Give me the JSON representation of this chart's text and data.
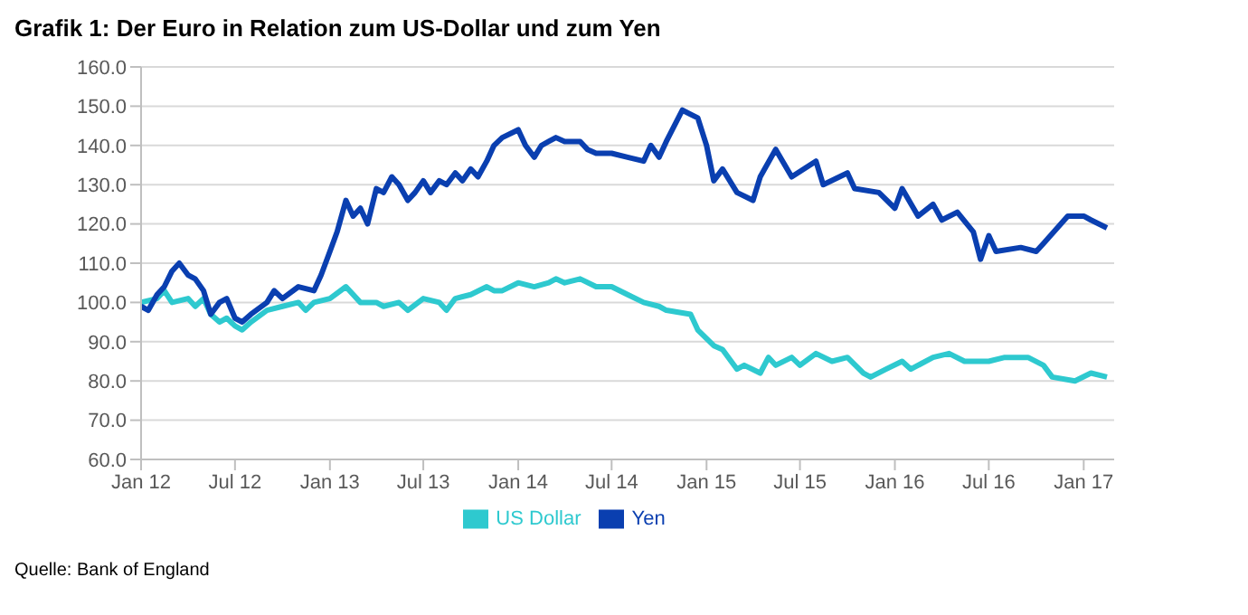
{
  "chart_data": {
    "type": "line",
    "title": "Grafik 1: Der Euro in Relation zum US-Dollar und zum Yen",
    "annotations": [
      "Quelle: Bank of England"
    ],
    "series": [
      {
        "name": "US Dollar",
        "color": "#2ec9cf",
        "x": [
          "2012-01-01",
          "2012-02-01",
          "2012-02-15",
          "2012-03-01",
          "2012-04-01",
          "2012-04-15",
          "2012-05-01",
          "2012-05-15",
          "2012-06-01",
          "2012-06-15",
          "2012-07-01",
          "2012-07-15",
          "2012-08-01",
          "2012-09-01",
          "2012-10-01",
          "2012-11-01",
          "2012-11-15",
          "2012-12-01",
          "2013-01-01",
          "2013-02-01",
          "2013-03-01",
          "2013-04-01",
          "2013-04-15",
          "2013-05-15",
          "2013-06-01",
          "2013-07-01",
          "2013-08-01",
          "2013-08-15",
          "2013-09-01",
          "2013-10-01",
          "2013-11-01",
          "2013-11-15",
          "2013-12-01",
          "2014-01-01",
          "2014-02-01",
          "2014-03-01",
          "2014-03-15",
          "2014-04-01",
          "2014-05-01",
          "2014-06-01",
          "2014-07-01",
          "2014-08-01",
          "2014-09-01",
          "2014-10-01",
          "2014-10-15",
          "2014-12-01",
          "2014-12-15",
          "2015-01-15",
          "2015-02-01",
          "2015-03-01",
          "2015-03-15",
          "2015-04-15",
          "2015-05-01",
          "2015-05-15",
          "2015-06-15",
          "2015-07-01",
          "2015-08-01",
          "2015-09-01",
          "2015-10-01",
          "2015-11-01",
          "2015-11-15",
          "2015-12-15",
          "2016-01-15",
          "2016-02-01",
          "2016-03-15",
          "2016-04-15",
          "2016-05-15",
          "2016-07-01",
          "2016-08-01",
          "2016-09-15",
          "2016-10-15",
          "2016-11-01",
          "2016-12-15",
          "2017-01-15",
          "2017-02-15"
        ],
        "values": [
          100,
          101,
          103,
          100,
          101,
          99,
          101,
          97,
          95,
          96,
          94,
          93,
          95,
          98,
          99,
          100,
          98,
          100,
          101,
          104,
          100,
          100,
          99,
          100,
          98,
          101,
          100,
          98,
          101,
          102,
          104,
          103,
          103,
          105,
          104,
          105,
          106,
          105,
          106,
          104,
          104,
          102,
          100,
          99,
          98,
          97,
          93,
          89,
          88,
          83,
          84,
          82,
          86,
          84,
          86,
          84,
          87,
          85,
          86,
          82,
          81,
          83,
          85,
          83,
          86,
          87,
          85,
          85,
          86,
          86,
          84,
          81,
          80,
          82,
          81
        ]
      },
      {
        "name": "Yen",
        "color": "#0a3fb0",
        "x": [
          "2012-01-01",
          "2012-01-15",
          "2012-02-01",
          "2012-02-15",
          "2012-03-01",
          "2012-03-15",
          "2012-04-01",
          "2012-04-15",
          "2012-05-01",
          "2012-05-15",
          "2012-06-01",
          "2012-06-15",
          "2012-07-01",
          "2012-07-15",
          "2012-08-01",
          "2012-09-01",
          "2012-09-15",
          "2012-10-01",
          "2012-11-01",
          "2012-12-01",
          "2012-12-15",
          "2013-01-01",
          "2013-01-15",
          "2013-02-01",
          "2013-02-15",
          "2013-03-01",
          "2013-03-15",
          "2013-04-01",
          "2013-04-15",
          "2013-05-01",
          "2013-05-15",
          "2013-06-01",
          "2013-06-15",
          "2013-07-01",
          "2013-07-15",
          "2013-08-01",
          "2013-08-15",
          "2013-09-01",
          "2013-09-15",
          "2013-10-01",
          "2013-10-15",
          "2013-11-01",
          "2013-11-15",
          "2013-12-01",
          "2014-01-01",
          "2014-01-15",
          "2014-02-01",
          "2014-02-15",
          "2014-03-01",
          "2014-03-15",
          "2014-04-01",
          "2014-05-01",
          "2014-05-15",
          "2014-06-01",
          "2014-07-01",
          "2014-08-01",
          "2014-09-01",
          "2014-09-15",
          "2014-10-01",
          "2014-10-15",
          "2014-11-15",
          "2014-12-15",
          "2015-01-01",
          "2015-01-15",
          "2015-02-01",
          "2015-03-01",
          "2015-04-01",
          "2015-04-15",
          "2015-05-15",
          "2015-06-15",
          "2015-08-01",
          "2015-08-15",
          "2015-10-01",
          "2015-10-15",
          "2015-12-01",
          "2016-01-01",
          "2016-01-15",
          "2016-02-15",
          "2016-03-15",
          "2016-04-01",
          "2016-05-01",
          "2016-06-01",
          "2016-06-15",
          "2016-07-01",
          "2016-07-15",
          "2016-09-01",
          "2016-10-01",
          "2016-10-15",
          "2016-12-01",
          "2017-01-01",
          "2017-01-15",
          "2017-02-15"
        ],
        "values": [
          99,
          98,
          102,
          104,
          108,
          110,
          107,
          106,
          103,
          97,
          100,
          101,
          96,
          95,
          97,
          100,
          103,
          101,
          104,
          103,
          107,
          113,
          118,
          126,
          122,
          124,
          120,
          129,
          128,
          132,
          130,
          126,
          128,
          131,
          128,
          131,
          130,
          133,
          131,
          134,
          132,
          136,
          140,
          142,
          144,
          140,
          137,
          140,
          141,
          142,
          141,
          141,
          139,
          138,
          138,
          137,
          136,
          140,
          137,
          141,
          149,
          147,
          140,
          131,
          134,
          128,
          126,
          132,
          139,
          132,
          136,
          130,
          133,
          129,
          128,
          124,
          129,
          122,
          125,
          121,
          123,
          118,
          111,
          117,
          113,
          114,
          113,
          115,
          122,
          122,
          121,
          119
        ]
      }
    ],
    "xlim": [
      "2012-01-01",
      "2017-03-01"
    ],
    "xticks": [
      {
        "value": "2012-01",
        "label": "Jan 12"
      },
      {
        "value": "2012-07",
        "label": "Jul 12"
      },
      {
        "value": "2013-01",
        "label": "Jan 13"
      },
      {
        "value": "2013-07",
        "label": "Jul 13"
      },
      {
        "value": "2014-01",
        "label": "Jan 14"
      },
      {
        "value": "2014-07",
        "label": "Jul 14"
      },
      {
        "value": "2015-01",
        "label": "Jan 15"
      },
      {
        "value": "2015-07",
        "label": "Jul 15"
      },
      {
        "value": "2016-01",
        "label": "Jan 16"
      },
      {
        "value": "2016-07",
        "label": "Jul 16"
      },
      {
        "value": "2017-01",
        "label": "Jan 17"
      }
    ],
    "ylim": [
      60,
      160
    ],
    "yticks": [
      {
        "value": 60,
        "label": "60.0"
      },
      {
        "value": 70,
        "label": "70.0"
      },
      {
        "value": 80,
        "label": "80.0"
      },
      {
        "value": 90,
        "label": "90.0"
      },
      {
        "value": 100,
        "label": "100.0"
      },
      {
        "value": 110,
        "label": "110.0"
      },
      {
        "value": 120,
        "label": "120.0"
      },
      {
        "value": 130,
        "label": "130.0"
      },
      {
        "value": 140,
        "label": "140.0"
      },
      {
        "value": 150,
        "label": "150.0"
      },
      {
        "value": 160,
        "label": "160.0"
      }
    ],
    "grid": "y",
    "legend": "bottom",
    "marker": "none",
    "line_style": "solid"
  }
}
